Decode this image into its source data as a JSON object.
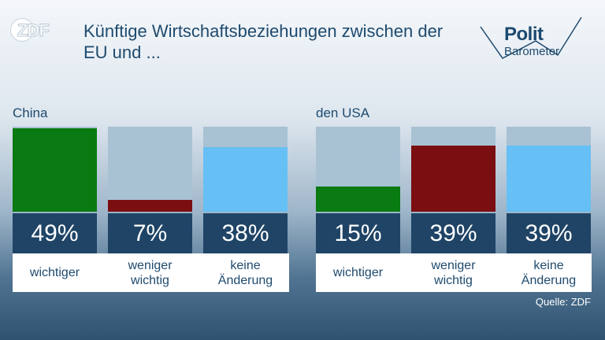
{
  "brand": {
    "logo_text": "ZDF",
    "series_line1": "Polit",
    "series_line2": "Barometer"
  },
  "title": "Künftige Wirtschaftsbeziehungen zwischen der EU und ...",
  "source": "Quelle: ZDF",
  "colors": {
    "wichtiger": "#0a7a12",
    "weniger_wichtig": "#7a0e10",
    "keine_aenderung": "#66bff5",
    "bar_background": "#a8c1d3",
    "value_box": "#1f4466",
    "title_text": "#1e4a6e"
  },
  "chart_data": [
    {
      "type": "bar",
      "title": "China",
      "categories": [
        "wichtiger",
        "weniger wichtig",
        "keine Änderung"
      ],
      "values": [
        49,
        7,
        38
      ],
      "value_labels": [
        "49%",
        "7%",
        "38%"
      ],
      "unit": "%",
      "ylim": [
        0,
        50
      ]
    },
    {
      "type": "bar",
      "title": "den USA",
      "categories": [
        "wichtiger",
        "weniger wichtig",
        "keine Änderung"
      ],
      "values": [
        15,
        39,
        39
      ],
      "value_labels": [
        "15%",
        "39%",
        "39%"
      ],
      "unit": "%",
      "ylim": [
        0,
        50
      ]
    }
  ],
  "category_lines": [
    [
      "wichtiger"
    ],
    [
      "weniger",
      "wichtig"
    ],
    [
      "keine",
      "Änderung"
    ]
  ]
}
